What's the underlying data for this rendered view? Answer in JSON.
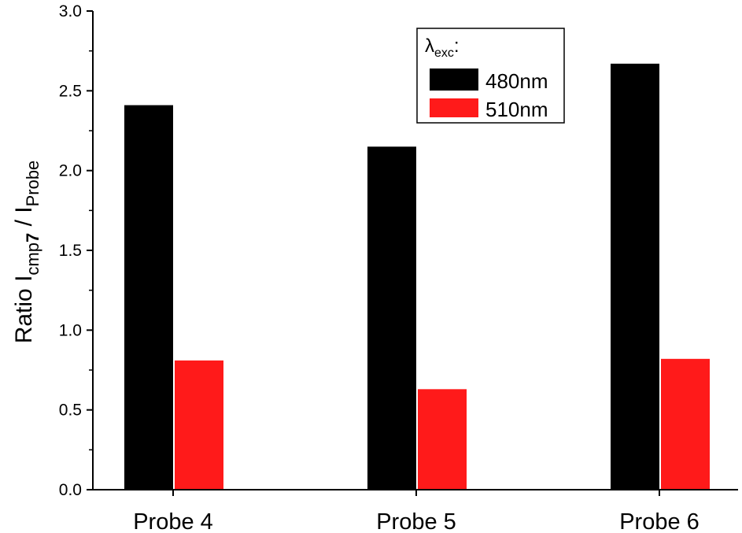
{
  "chart_data": {
    "type": "bar",
    "categories": [
      "Probe 4",
      "Probe 5",
      "Probe 6"
    ],
    "series": [
      {
        "name": "480nm",
        "color": "#000000",
        "values": [
          2.41,
          2.15,
          2.67
        ]
      },
      {
        "name": "510nm",
        "color": "#ff1a1a",
        "values": [
          0.81,
          0.63,
          0.82
        ]
      }
    ],
    "ylabel": {
      "prefix": "Ratio I",
      "sub1": "cmp",
      "sub1_bold": "7",
      "mid": " / I",
      "sub2": "Probe"
    },
    "ylim": [
      0,
      3.0
    ],
    "yticks": [
      "0.0",
      "0.5",
      "1.0",
      "1.5",
      "2.0",
      "2.5",
      "3.0"
    ],
    "grid": false,
    "legend": {
      "placement": "top-right",
      "title_symbol": "λ",
      "title_sub": "exc",
      "title_suffix": ":"
    }
  }
}
